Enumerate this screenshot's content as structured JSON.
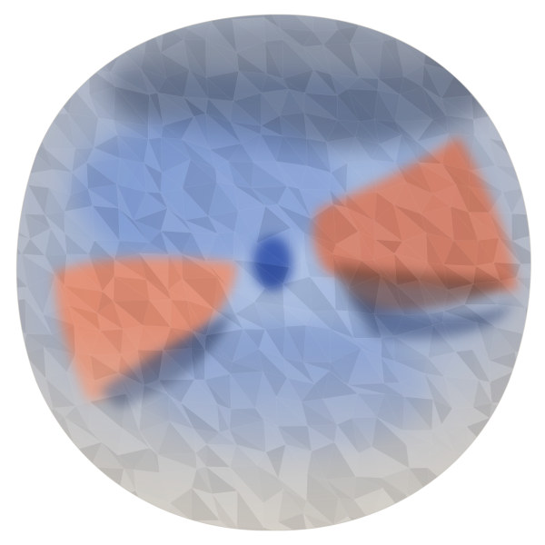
{
  "scene": {
    "subject": "faceted-sphere-render",
    "background_color": "#ffffff",
    "colormap": "coolwarm",
    "colors": {
      "cool_dark": "#3b4f7a",
      "cool_mid": "#6f8fc9",
      "cool_light": "#a9bde3",
      "neutral": "#d8d2c8",
      "warm_mid": "#e88c6e",
      "warm_dark": "#7a4638"
    }
  }
}
